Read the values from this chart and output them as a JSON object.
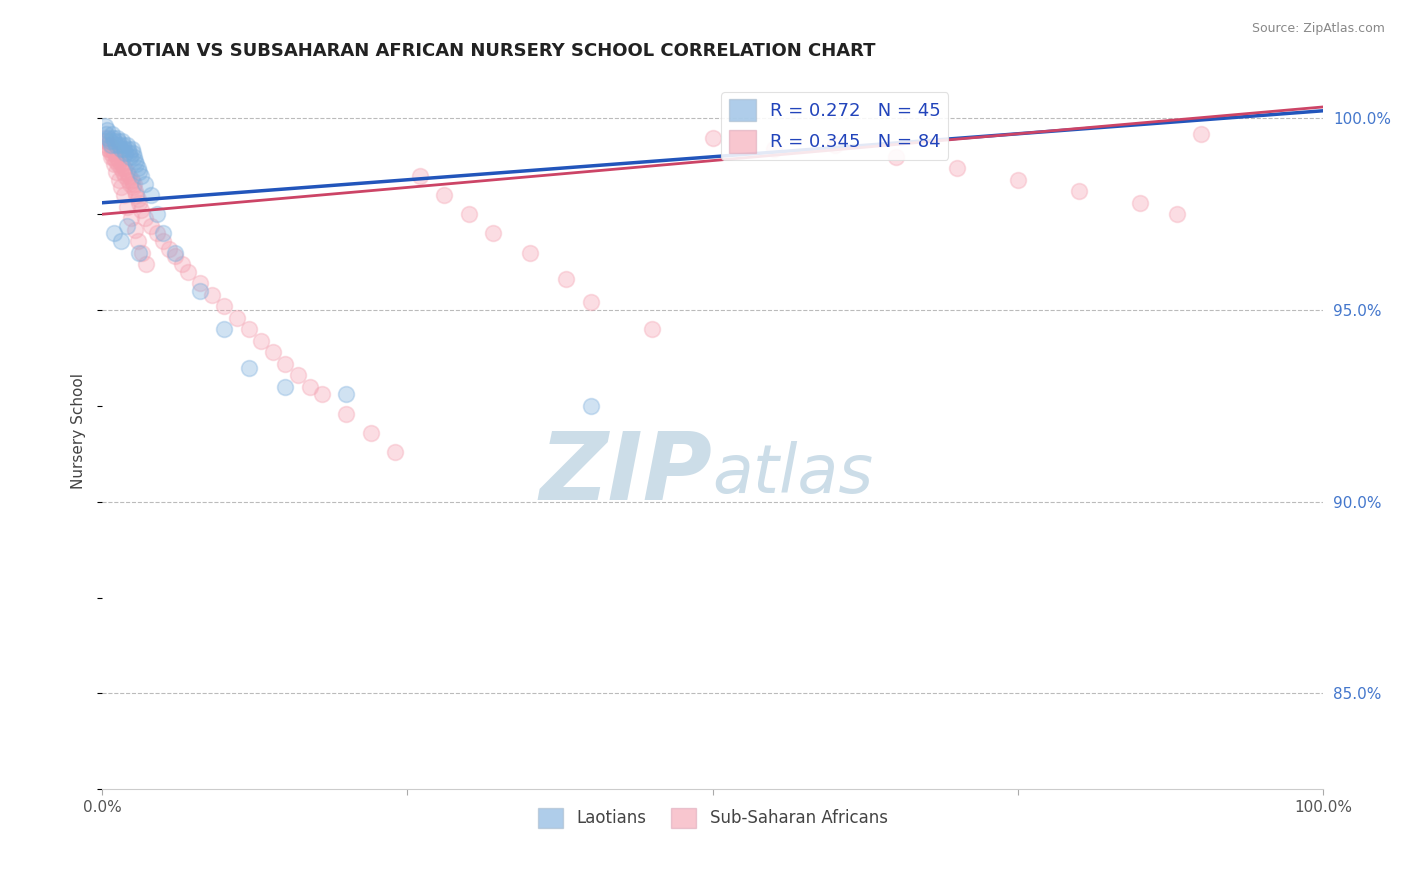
{
  "title": "LAOTIAN VS SUBSAHARAN AFRICAN NURSERY SCHOOL CORRELATION CHART",
  "source": "Source: ZipAtlas.com",
  "ylabel": "Nursery School",
  "right_yticks": [
    85.0,
    90.0,
    95.0,
    100.0
  ],
  "right_ytick_labels": [
    "85.0%",
    "90.0%",
    "95.0%",
    "100.0%"
  ],
  "legend_blue": "R = 0.272   N = 45",
  "legend_pink": "R = 0.345   N = 84",
  "blue_color": "#7aaddc",
  "pink_color": "#f4a0b0",
  "trend_blue": "#2255bb",
  "trend_pink": "#cc4466",
  "watermark_top": "ZIP",
  "watermark_bot": "atlas",
  "watermark_color": "#ccdde8",
  "blue_scatter_x": [
    0.2,
    0.3,
    0.4,
    0.5,
    0.6,
    0.7,
    0.8,
    0.9,
    1.0,
    1.1,
    1.2,
    1.3,
    1.4,
    1.5,
    1.6,
    1.7,
    1.8,
    1.9,
    2.0,
    2.1,
    2.2,
    2.3,
    2.4,
    2.5,
    2.6,
    2.7,
    2.8,
    2.9,
    3.0,
    3.2,
    3.5,
    4.0,
    4.5,
    5.0,
    6.0,
    8.0,
    10.0,
    12.0,
    15.0,
    20.0,
    1.0,
    1.5,
    2.0,
    3.0,
    40.0
  ],
  "blue_scatter_y": [
    99.8,
    99.6,
    99.7,
    99.5,
    99.4,
    99.3,
    99.6,
    99.5,
    99.4,
    99.3,
    99.5,
    99.4,
    99.3,
    99.2,
    99.4,
    99.3,
    99.2,
    99.1,
    99.3,
    99.2,
    99.1,
    99.0,
    99.2,
    99.1,
    99.0,
    98.9,
    98.8,
    98.7,
    98.6,
    98.5,
    98.3,
    98.0,
    97.5,
    97.0,
    96.5,
    95.5,
    94.5,
    93.5,
    93.0,
    92.8,
    97.0,
    96.8,
    97.2,
    96.5,
    92.5
  ],
  "pink_scatter_x": [
    0.2,
    0.3,
    0.4,
    0.5,
    0.6,
    0.7,
    0.8,
    0.9,
    1.0,
    1.1,
    1.2,
    1.3,
    1.4,
    1.5,
    1.6,
    1.7,
    1.8,
    1.9,
    2.0,
    2.1,
    2.2,
    2.3,
    2.4,
    2.5,
    2.6,
    2.7,
    2.8,
    2.9,
    3.0,
    3.2,
    3.5,
    4.0,
    4.5,
    5.0,
    5.5,
    6.0,
    6.5,
    7.0,
    8.0,
    9.0,
    10.0,
    11.0,
    12.0,
    13.0,
    14.0,
    15.0,
    16.0,
    17.0,
    18.0,
    20.0,
    22.0,
    24.0,
    26.0,
    28.0,
    30.0,
    32.0,
    35.0,
    38.0,
    40.0,
    45.0,
    50.0,
    55.0,
    60.0,
    65.0,
    70.0,
    75.0,
    80.0,
    85.0,
    88.0,
    90.0,
    0.35,
    0.55,
    0.75,
    0.95,
    1.15,
    1.35,
    1.55,
    1.75,
    2.05,
    2.35,
    2.65,
    2.95,
    3.25,
    3.55
  ],
  "pink_scatter_y": [
    99.5,
    99.3,
    99.4,
    99.2,
    99.3,
    99.1,
    99.2,
    99.0,
    99.1,
    98.9,
    99.0,
    98.8,
    98.9,
    98.7,
    98.8,
    98.6,
    98.7,
    98.5,
    98.6,
    98.4,
    98.5,
    98.3,
    98.4,
    98.2,
    98.3,
    98.1,
    98.0,
    97.9,
    97.8,
    97.6,
    97.4,
    97.2,
    97.0,
    96.8,
    96.6,
    96.4,
    96.2,
    96.0,
    95.7,
    95.4,
    95.1,
    94.8,
    94.5,
    94.2,
    93.9,
    93.6,
    93.3,
    93.0,
    92.8,
    92.3,
    91.8,
    91.3,
    98.5,
    98.0,
    97.5,
    97.0,
    96.5,
    95.8,
    95.2,
    94.5,
    99.5,
    99.2,
    99.3,
    99.0,
    98.7,
    98.4,
    98.1,
    97.8,
    97.5,
    99.6,
    99.4,
    99.2,
    99.0,
    98.8,
    98.6,
    98.4,
    98.2,
    98.0,
    97.7,
    97.4,
    97.1,
    96.8,
    96.5,
    96.2
  ],
  "blue_trend_x": [
    0.0,
    100.0
  ],
  "blue_trend_y": [
    97.8,
    100.2
  ],
  "pink_trend_x": [
    0.0,
    100.0
  ],
  "pink_trend_y": [
    97.5,
    100.3
  ],
  "xmin": 0.0,
  "xmax": 100.0,
  "ymin": 82.5,
  "ymax": 101.2,
  "marker_size": 130,
  "marker_alpha": 0.35,
  "marker_linewidth": 1.2
}
